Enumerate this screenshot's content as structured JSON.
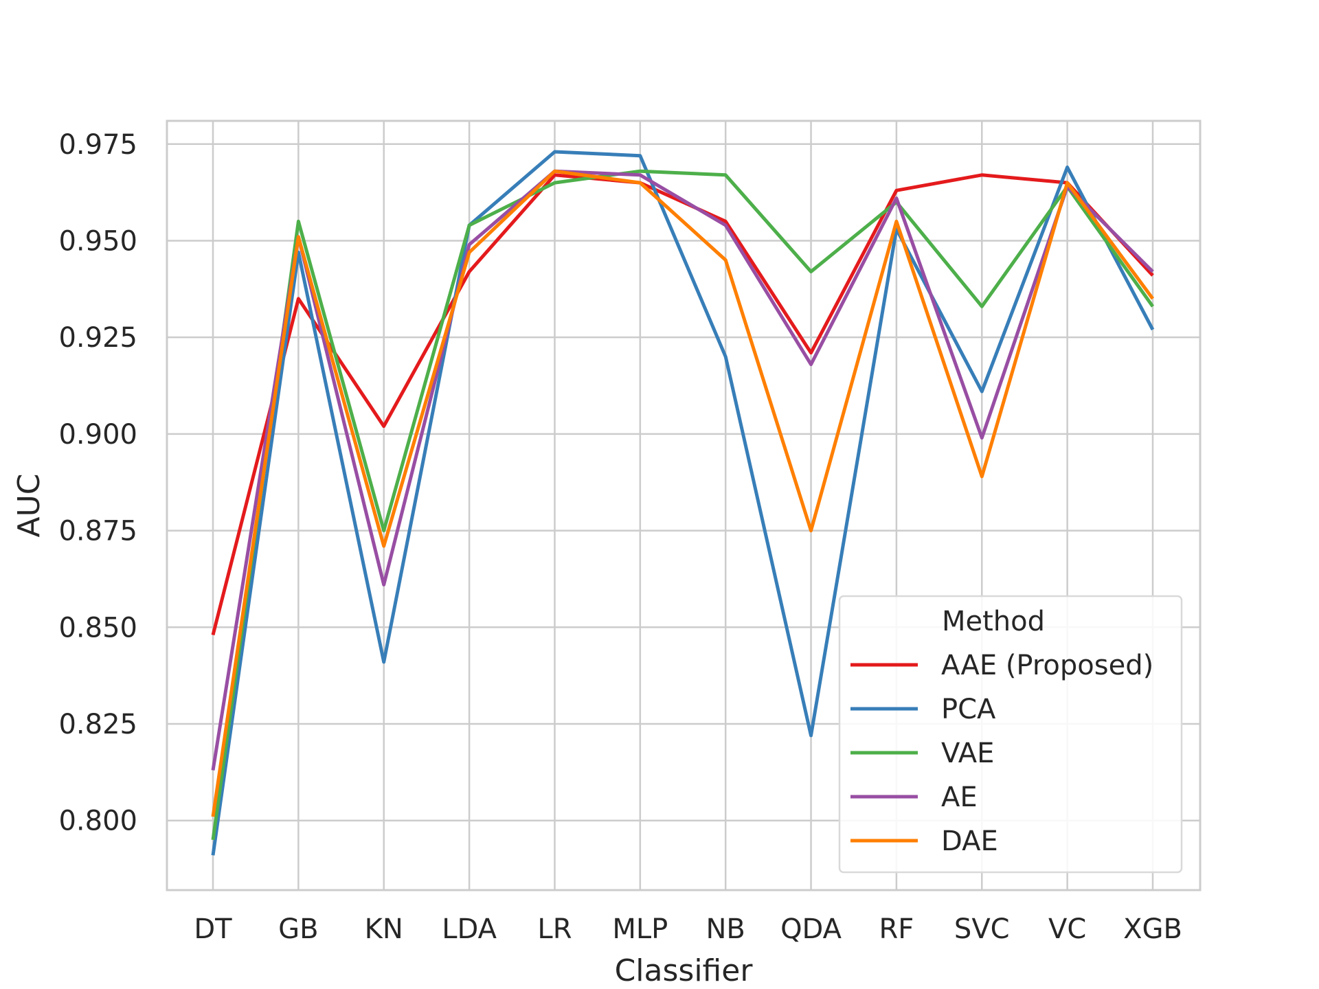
{
  "chart_data": {
    "type": "line",
    "title": "",
    "xlabel": "Classifier",
    "ylabel": "AUC",
    "categories": [
      "DT",
      "GB",
      "KN",
      "LDA",
      "LR",
      "MLP",
      "NB",
      "QDA",
      "RF",
      "SVC",
      "VC",
      "XGB"
    ],
    "ylim": [
      0.782,
      0.981
    ],
    "yticks": [
      "0.800",
      "0.825",
      "0.850",
      "0.875",
      "0.900",
      "0.925",
      "0.950",
      "0.975"
    ],
    "grid": true,
    "legend": {
      "title": "Method",
      "placement": "lower-right"
    },
    "series": [
      {
        "name": "AAE (Proposed)",
        "color": "#e41a1c",
        "values": [
          0.848,
          0.935,
          0.902,
          0.942,
          0.967,
          0.965,
          0.955,
          0.921,
          0.963,
          0.967,
          0.965,
          0.941
        ]
      },
      {
        "name": "PCA",
        "color": "#377eb8",
        "values": [
          0.791,
          0.947,
          0.841,
          0.954,
          0.973,
          0.972,
          0.92,
          0.822,
          0.953,
          0.911,
          0.969,
          0.927
        ]
      },
      {
        "name": "VAE",
        "color": "#4daf4a",
        "values": [
          0.795,
          0.955,
          0.875,
          0.954,
          0.965,
          0.968,
          0.967,
          0.942,
          0.96,
          0.933,
          0.964,
          0.933
        ]
      },
      {
        "name": "AE",
        "color": "#984ea3",
        "values": [
          0.813,
          0.951,
          0.861,
          0.949,
          0.968,
          0.967,
          0.954,
          0.918,
          0.961,
          0.899,
          0.964,
          0.942
        ]
      },
      {
        "name": "DAE",
        "color": "#ff7f00",
        "values": [
          0.801,
          0.951,
          0.871,
          0.947,
          0.968,
          0.965,
          0.945,
          0.875,
          0.955,
          0.889,
          0.965,
          0.935
        ]
      }
    ]
  }
}
